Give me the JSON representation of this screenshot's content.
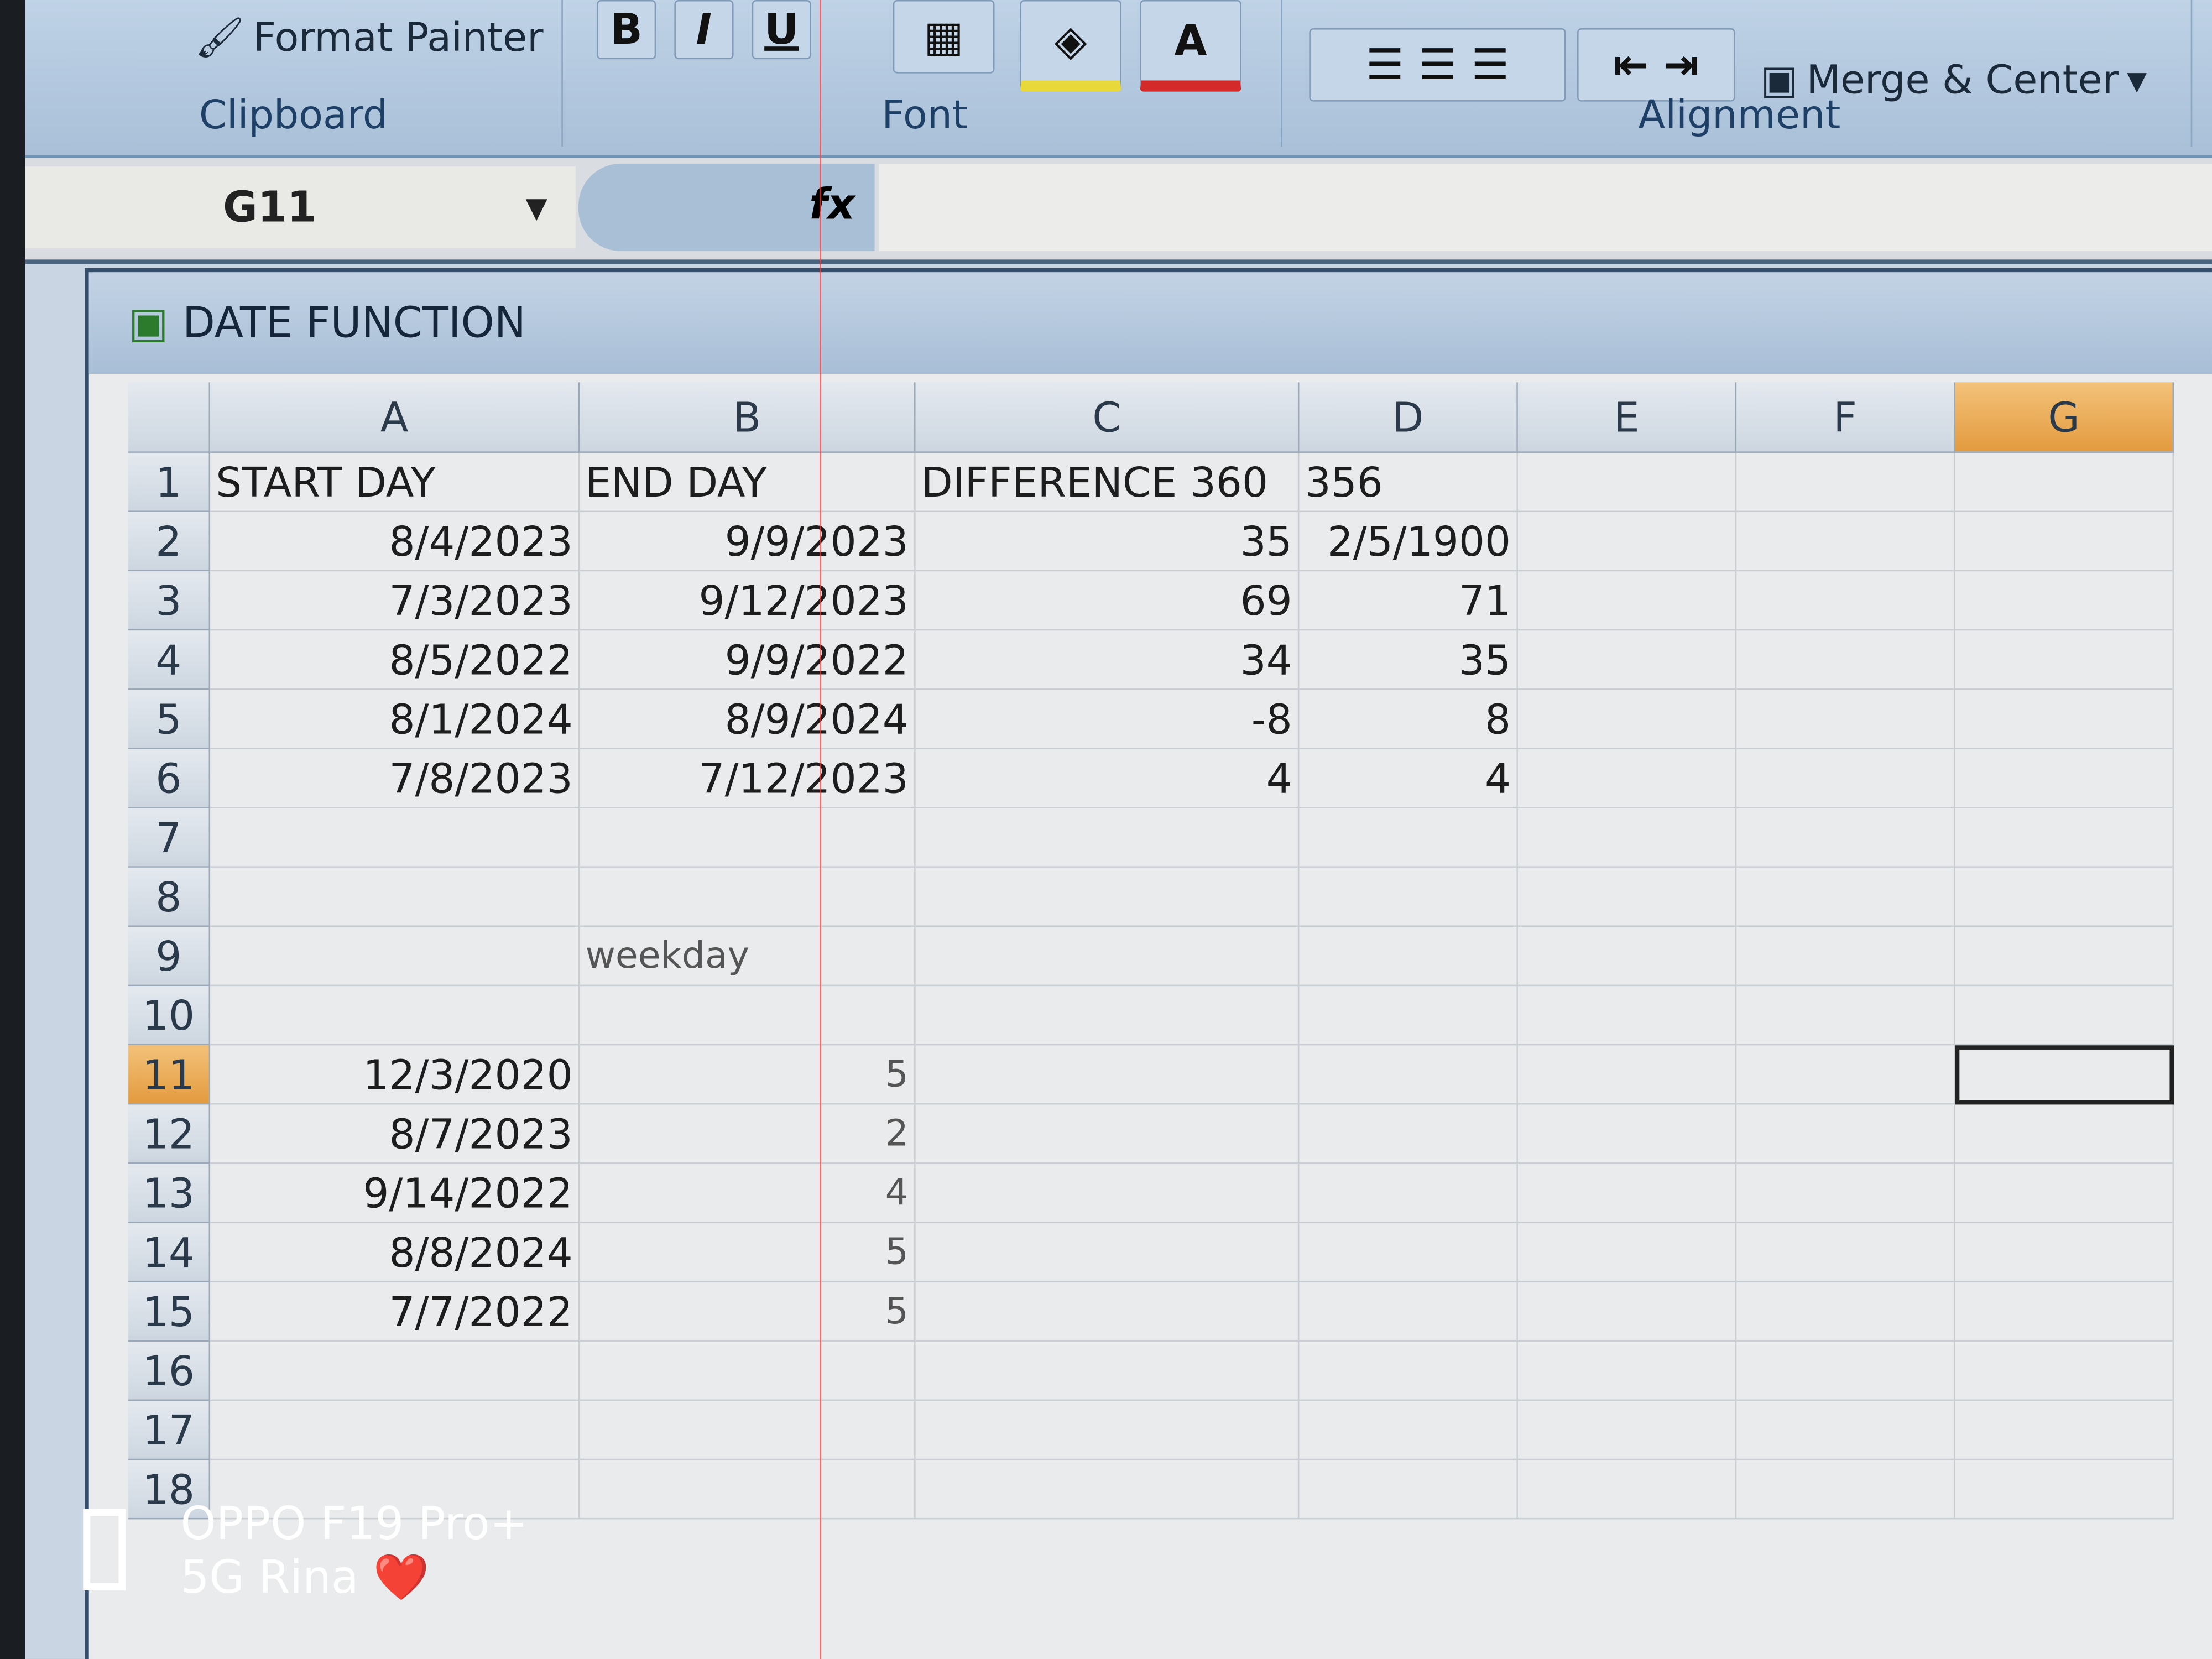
{
  "ribbon": {
    "clipboard": {
      "format_painter": "Format Painter",
      "label": "Clipboard"
    },
    "font": {
      "bold": "B",
      "italic": "I",
      "underline": "U",
      "font_color": "A",
      "label": "Font"
    },
    "alignment": {
      "merge_center": "Merge & Center",
      "label": "Alignment"
    }
  },
  "formula_bar": {
    "name_box": "G11",
    "fx": "fx",
    "value": ""
  },
  "workbook": {
    "title": "DATE FUNCTION"
  },
  "columns": [
    "A",
    "B",
    "C",
    "D",
    "E",
    "F",
    "G"
  ],
  "selected_column": "G",
  "selected_row": 11,
  "rows": [
    {
      "n": "1",
      "A": "START DAY",
      "B": "END DAY",
      "C": "DIFFERENCE 360",
      "D": "356"
    },
    {
      "n": "2",
      "A": "8/4/2023",
      "B": "9/9/2023",
      "C": "35",
      "D": "2/5/1900"
    },
    {
      "n": "3",
      "A": "7/3/2023",
      "B": "9/12/2023",
      "C": "69",
      "D": "71"
    },
    {
      "n": "4",
      "A": "8/5/2022",
      "B": "9/9/2022",
      "C": "34",
      "D": "35"
    },
    {
      "n": "5",
      "A": "8/1/2024",
      "B": "8/9/2024",
      "C": "-8",
      "D": "8"
    },
    {
      "n": "6",
      "A": "7/8/2023",
      "B": "7/12/2023",
      "C": "4",
      "D": "4"
    },
    {
      "n": "7"
    },
    {
      "n": "8"
    },
    {
      "n": "9",
      "B": "weekday"
    },
    {
      "n": "10"
    },
    {
      "n": "11",
      "A": "12/3/2020",
      "B": "5"
    },
    {
      "n": "12",
      "A": "8/7/2023",
      "B": "2"
    },
    {
      "n": "13",
      "A": "9/14/2022",
      "B": "4"
    },
    {
      "n": "14",
      "A": "8/8/2024",
      "B": "5"
    },
    {
      "n": "15",
      "A": "7/7/2022",
      "B": "5"
    },
    {
      "n": "16"
    },
    {
      "n": "17"
    },
    {
      "n": "18"
    }
  ],
  "watermark": {
    "device": "OPPO F19 Pro+",
    "caption": "5G Rina ❤️"
  },
  "colors": {
    "selected_header": "#e39b3f",
    "ribbon": "#a9c0d8"
  }
}
